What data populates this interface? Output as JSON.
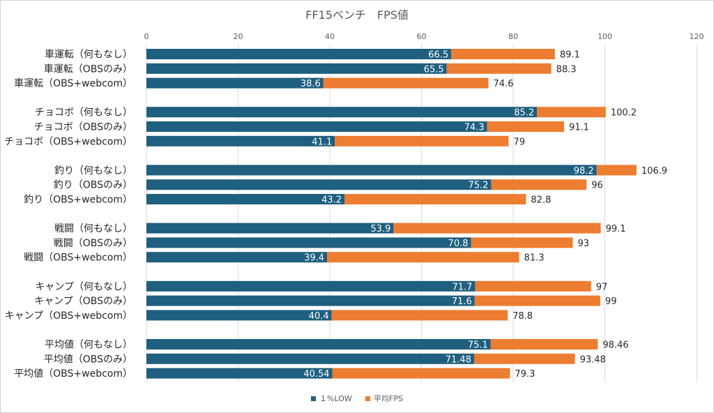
{
  "chart_data": {
    "type": "bar",
    "orientation": "horizontal",
    "title": "FF15ベンチ　FPS値",
    "xlim": [
      0,
      120
    ],
    "xticks": [
      0,
      20,
      40,
      60,
      80,
      100,
      120
    ],
    "grid": true,
    "legend_position": "bottom",
    "groups": [
      {
        "categories": [
          "車運転（何もなし）",
          "車運転（OBSのみ）",
          "車運転（OBS+webcom）"
        ]
      },
      {
        "categories": [
          "チョコボ（何もなし）",
          "チョコボ（OBSのみ）",
          "チョコボ（OBS+webcom）"
        ]
      },
      {
        "categories": [
          "釣り（何もなし）",
          "釣り（OBSのみ）",
          "釣り（OBS+webcom）"
        ]
      },
      {
        "categories": [
          "戦闘（何もなし）",
          "戦闘（OBSのみ）",
          "戦闘（OBS+webcom）"
        ]
      },
      {
        "categories": [
          "キャンプ（何もなし）",
          "キャンプ（OBSのみ）",
          "キャンプ（OBS+webcom）"
        ]
      },
      {
        "categories": [
          "平均値（何もなし）",
          "平均値（OBSのみ）",
          "平均値（OBS+webcom）"
        ]
      }
    ],
    "series": [
      {
        "name": "１%LOW",
        "color": "#1f5f7f",
        "values": [
          66.5,
          65.5,
          38.6,
          85.2,
          74.3,
          41.1,
          98.2,
          75.2,
          43.2,
          53.9,
          70.8,
          39.4,
          71.7,
          71.6,
          40.4,
          75.1,
          71.48,
          40.54
        ]
      },
      {
        "name": "平均FPS",
        "color": "#ed7d31",
        "values": [
          89.1,
          88.3,
          74.6,
          100.2,
          91.1,
          79,
          106.9,
          96,
          82.8,
          99.1,
          93,
          81.3,
          97,
          99,
          78.8,
          98.46,
          93.48,
          79.3
        ]
      }
    ]
  }
}
